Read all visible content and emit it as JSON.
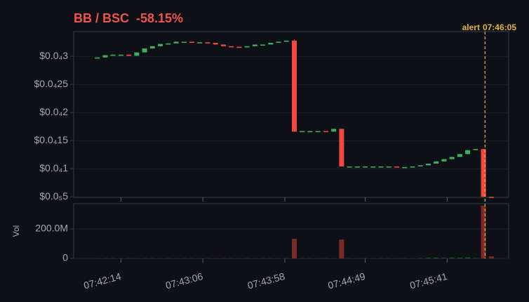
{
  "chart_data": {
    "type": "candlestick",
    "title": "BB / BSC  -58.15%",
    "volume_label": "Vol",
    "alert": {
      "text": "alert",
      "time": "07:46:05",
      "color": "#e3b341"
    },
    "title_color": "#f0524d",
    "up_color": "#3fae5a",
    "down_color": "#f0483e",
    "volume_up_color": "#1f5a2e",
    "volume_down_color": "#7a2a27",
    "grid": true,
    "x": [
      "07:41:59",
      "07:42:04",
      "07:42:09",
      "07:42:14",
      "07:42:19",
      "07:42:24",
      "07:42:29",
      "07:42:34",
      "07:42:39",
      "07:42:44",
      "07:42:49",
      "07:42:54",
      "07:42:59",
      "07:43:04",
      "07:43:09",
      "07:43:14",
      "07:43:19",
      "07:43:24",
      "07:43:29",
      "07:43:34",
      "07:43:39",
      "07:43:44",
      "07:43:49",
      "07:43:54",
      "07:43:59",
      "07:44:04",
      "07:44:09",
      "07:44:14",
      "07:44:19",
      "07:44:24",
      "07:44:29",
      "07:44:34",
      "07:44:39",
      "07:44:44",
      "07:44:49",
      "07:44:54",
      "07:44:59",
      "07:45:04",
      "07:45:09",
      "07:45:14",
      "07:45:19",
      "07:45:24",
      "07:45:29",
      "07:45:34",
      "07:45:39",
      "07:45:44",
      "07:45:49",
      "07:45:54",
      "07:45:59",
      "07:46:04",
      "07:46:09"
    ],
    "open": [
      2.96e-05,
      2.98e-05,
      3.02e-05,
      3.03e-05,
      3.03e-05,
      3.01e-05,
      3.07e-05,
      3.14e-05,
      3.18e-05,
      3.22e-05,
      3.23e-05,
      3.26e-05,
      3.26e-05,
      3.25e-05,
      3.25e-05,
      3.24e-05,
      3.21e-05,
      3.18e-05,
      3.17e-05,
      3.16e-05,
      3.18e-05,
      3.21e-05,
      3.21e-05,
      3.24e-05,
      3.26e-05,
      3.28e-05,
      1.66e-05,
      1.67e-05,
      1.67e-05,
      1.67e-05,
      1.66e-05,
      1.71e-05,
      1.04e-05,
      1.04e-05,
      1.04e-05,
      1.04e-05,
      1.04e-05,
      1.04e-05,
      1.04e-05,
      1.03e-05,
      1.03e-05,
      1.04e-05,
      1.06e-05,
      1.09e-05,
      1.13e-05,
      1.17e-05,
      1.21e-05,
      1.26e-05,
      1.33e-05,
      1.35e-05,
      5e-06
    ],
    "high": [
      2.98e-05,
      3.02e-05,
      3.03e-05,
      3.03e-05,
      3.03e-05,
      3.07e-05,
      3.14e-05,
      3.18e-05,
      3.22e-05,
      3.23e-05,
      3.26e-05,
      3.26e-05,
      3.26e-05,
      3.25e-05,
      3.25e-05,
      3.24e-05,
      3.21e-05,
      3.18e-05,
      3.17e-05,
      3.18e-05,
      3.21e-05,
      3.21e-05,
      3.24e-05,
      3.26e-05,
      3.28e-05,
      3.3e-05,
      1.67e-05,
      1.67e-05,
      1.67e-05,
      1.67e-05,
      1.71e-05,
      1.71e-05,
      1.04e-05,
      1.04e-05,
      1.04e-05,
      1.04e-05,
      1.04e-05,
      1.04e-05,
      1.04e-05,
      1.03e-05,
      1.04e-05,
      1.06e-05,
      1.09e-05,
      1.13e-05,
      1.17e-05,
      1.21e-05,
      1.26e-05,
      1.33e-05,
      1.35e-05,
      1.35e-05,
      5e-06
    ],
    "low": [
      2.96e-05,
      2.98e-05,
      3.02e-05,
      3.03e-05,
      3.01e-05,
      3.01e-05,
      3.07e-05,
      3.14e-05,
      3.18e-05,
      3.22e-05,
      3.23e-05,
      3.26e-05,
      3.25e-05,
      3.25e-05,
      3.24e-05,
      3.21e-05,
      3.18e-05,
      3.17e-05,
      3.16e-05,
      3.16e-05,
      3.18e-05,
      3.21e-05,
      3.21e-05,
      3.24e-05,
      3.26e-05,
      1.66e-05,
      1.66e-05,
      1.67e-05,
      1.67e-05,
      1.66e-05,
      1.66e-05,
      1.04e-05,
      1.04e-05,
      1.04e-05,
      1.04e-05,
      1.04e-05,
      1.04e-05,
      1.04e-05,
      1.03e-05,
      1.03e-05,
      1.03e-05,
      1.04e-05,
      1.06e-05,
      1.09e-05,
      1.13e-05,
      1.17e-05,
      1.21e-05,
      1.26e-05,
      1.33e-05,
      5e-06,
      4.9e-06
    ],
    "close": [
      2.98e-05,
      3.02e-05,
      3.03e-05,
      3.03e-05,
      3.01e-05,
      3.07e-05,
      3.14e-05,
      3.18e-05,
      3.22e-05,
      3.23e-05,
      3.26e-05,
      3.26e-05,
      3.25e-05,
      3.25e-05,
      3.24e-05,
      3.21e-05,
      3.18e-05,
      3.17e-05,
      3.16e-05,
      3.18e-05,
      3.21e-05,
      3.21e-05,
      3.24e-05,
      3.26e-05,
      3.28e-05,
      1.66e-05,
      1.67e-05,
      1.67e-05,
      1.67e-05,
      1.66e-05,
      1.71e-05,
      1.04e-05,
      1.04e-05,
      1.04e-05,
      1.04e-05,
      1.04e-05,
      1.04e-05,
      1.04e-05,
      1.03e-05,
      1.03e-05,
      1.04e-05,
      1.06e-05,
      1.09e-05,
      1.13e-05,
      1.17e-05,
      1.21e-05,
      1.26e-05,
      1.33e-05,
      1.35e-05,
      5e-06,
      4.9e-06
    ],
    "volume": [
      1500000,
      1500000,
      1500000,
      1500000,
      1500000,
      1500000,
      1500000,
      1500000,
      1500000,
      1500000,
      1500000,
      1500000,
      1500000,
      1500000,
      1500000,
      1500000,
      1500000,
      1500000,
      1500000,
      1500000,
      1500000,
      1500000,
      1500000,
      1500000,
      1500000,
      133000000,
      1500000,
      1500000,
      1500000,
      1500000,
      1500000,
      128000000,
      1500000,
      1500000,
      1500000,
      1500000,
      1500000,
      1500000,
      1500000,
      1500000,
      1500000,
      3000000,
      4000000,
      5000000,
      4000000,
      6000000,
      5000000,
      7000000,
      3000000,
      357000000,
      14000000
    ],
    "xlim": [
      "07:41:44",
      "07:46:20"
    ],
    "xticks": [
      "07:42:14",
      "07:43:06",
      "07:43:58",
      "07:44:49",
      "07:45:41"
    ],
    "ylim": [
      4.9e-06,
      3.44e-05
    ],
    "yticks": [
      {
        "value": 5e-06,
        "label": "$0.0₅5"
      },
      {
        "value": 1e-05,
        "label": "$0.0₄1"
      },
      {
        "value": 1.5e-05,
        "label": "$0.0₄15"
      },
      {
        "value": 2e-05,
        "label": "$0.0₄2"
      },
      {
        "value": 2.5e-05,
        "label": "$0.0₄25"
      },
      {
        "value": 3e-05,
        "label": "$0.0₄3"
      }
    ],
    "y2lim": [
      0,
      371000000
    ],
    "y2ticks": [
      0,
      {
        "value": 200000000,
        "label": "200.0M"
      }
    ]
  }
}
